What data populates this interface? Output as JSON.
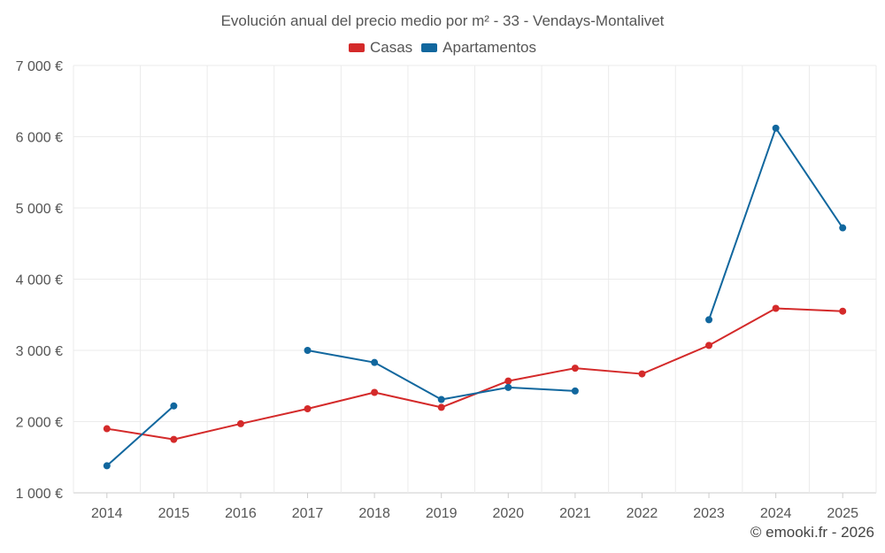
{
  "chart_data": {
    "type": "line",
    "title": "Evolución anual del precio medio por m² - 33 - Vendays-Montalivet",
    "xlabel": "",
    "ylabel": "",
    "categories": [
      "2014",
      "2015",
      "2016",
      "2017",
      "2018",
      "2019",
      "2020",
      "2021",
      "2022",
      "2023",
      "2024",
      "2025"
    ],
    "ylim": [
      1000,
      7000
    ],
    "yticks": [
      1000,
      2000,
      3000,
      4000,
      5000,
      6000,
      7000
    ],
    "ytick_labels": [
      "1 000 €",
      "2 000 €",
      "3 000 €",
      "4 000 €",
      "5 000 €",
      "6 000 €",
      "7 000 €"
    ],
    "grid": true,
    "legend_position": "top-center",
    "series": [
      {
        "name": "Casas",
        "color": "#d42a2a",
        "values": [
          1900,
          1750,
          1970,
          2180,
          2410,
          2200,
          2570,
          2750,
          2670,
          3070,
          3590,
          3550
        ]
      },
      {
        "name": "Apartamentos",
        "color": "#11679e",
        "values": [
          1380,
          2220,
          null,
          3000,
          2830,
          2310,
          2480,
          2430,
          null,
          3430,
          6120,
          4720
        ]
      }
    ]
  },
  "footer": {
    "copyright": "© emooki.fr - 2026"
  }
}
